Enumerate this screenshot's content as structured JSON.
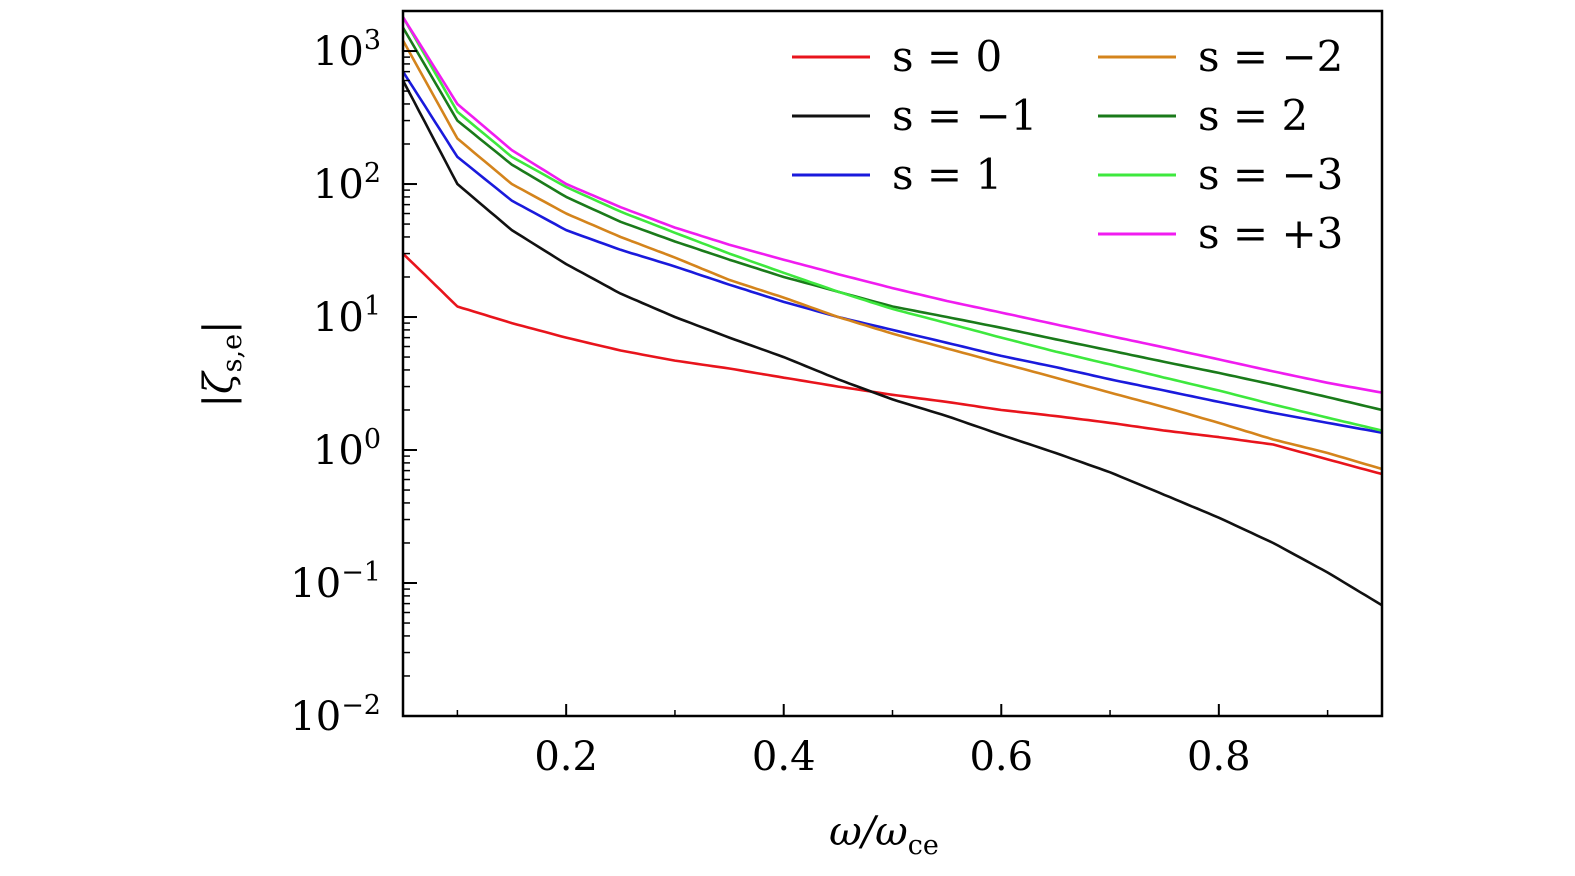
{
  "chart_data": {
    "type": "line",
    "xlabel": {
      "main": "ω/ω",
      "sub": "ce"
    },
    "ylabel": {
      "main": "|ζ",
      "sub": "s,e",
      "close": "|"
    },
    "xlim": [
      0.05,
      0.95
    ],
    "ylim": [
      0.01,
      2000
    ],
    "yscale": "log",
    "grid": false,
    "legend_position": "top-right",
    "x_ticks": [
      {
        "value": 0.2,
        "label": "0.2"
      },
      {
        "value": 0.4,
        "label": "0.4"
      },
      {
        "value": 0.6,
        "label": "0.6"
      },
      {
        "value": 0.8,
        "label": "0.8"
      }
    ],
    "y_ticks": [
      {
        "value": 0.01,
        "base": "10",
        "exp": "−2"
      },
      {
        "value": 0.1,
        "base": "10",
        "exp": "−1"
      },
      {
        "value": 1,
        "base": "10",
        "exp": "0"
      },
      {
        "value": 10,
        "base": "10",
        "exp": "1"
      },
      {
        "value": 100,
        "base": "10",
        "exp": "2"
      },
      {
        "value": 1000,
        "base": "10",
        "exp": "3"
      }
    ],
    "x": [
      0.05,
      0.1,
      0.15,
      0.2,
      0.25,
      0.3,
      0.35,
      0.4,
      0.45,
      0.5,
      0.55,
      0.6,
      0.65,
      0.7,
      0.75,
      0.8,
      0.85,
      0.9,
      0.95
    ],
    "series": [
      {
        "name": "s = 0",
        "color": "#e8141c",
        "values": [
          30,
          12,
          9,
          7,
          5.6,
          4.7,
          4.1,
          3.5,
          3.0,
          2.6,
          2.3,
          2.0,
          1.8,
          1.6,
          1.4,
          1.25,
          1.1,
          0.85,
          0.66
        ]
      },
      {
        "name": "s = −1",
        "color": "#111111",
        "values": [
          600,
          100,
          45,
          25,
          15,
          10,
          7,
          5,
          3.4,
          2.4,
          1.8,
          1.3,
          0.95,
          0.68,
          0.46,
          0.31,
          0.2,
          0.12,
          0.068
        ]
      },
      {
        "name": "s = 1",
        "color": "#1a1adc",
        "values": [
          700,
          160,
          75,
          45,
          32,
          24,
          17.5,
          13,
          10,
          8,
          6.4,
          5.1,
          4.2,
          3.4,
          2.8,
          2.3,
          1.9,
          1.6,
          1.35
        ]
      },
      {
        "name": "s = −2",
        "color": "#d4841c",
        "values": [
          1200,
          220,
          100,
          60,
          40,
          28,
          19,
          14,
          10,
          7.5,
          5.8,
          4.5,
          3.5,
          2.7,
          2.1,
          1.6,
          1.2,
          0.95,
          0.72
        ]
      },
      {
        "name": "s = 2",
        "color": "#1a7a1a",
        "values": [
          1500,
          300,
          140,
          80,
          52,
          37,
          27,
          20,
          15.5,
          12,
          10,
          8.3,
          6.8,
          5.6,
          4.6,
          3.8,
          3.1,
          2.5,
          2.0
        ]
      },
      {
        "name": "s = −3",
        "color": "#3ee83e",
        "values": [
          1800,
          350,
          160,
          95,
          62,
          43,
          30,
          21.5,
          15.5,
          11.5,
          9,
          7,
          5.5,
          4.4,
          3.5,
          2.8,
          2.2,
          1.75,
          1.4
        ]
      },
      {
        "name": "s = +3",
        "color": "#f01cf0",
        "values": [
          1800,
          400,
          180,
          100,
          67,
          47,
          35,
          27,
          21,
          16.5,
          13.2,
          10.8,
          8.8,
          7.2,
          5.9,
          4.8,
          3.9,
          3.2,
          2.7
        ]
      }
    ]
  }
}
